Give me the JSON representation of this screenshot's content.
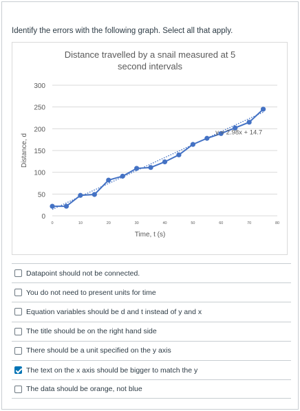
{
  "question": {
    "text": "Identify the errors with the following graph. Select all that apply."
  },
  "chart_data": {
    "type": "scatter",
    "title": "Distance travelled by a snail measured at 5 second intervals",
    "title_lines": [
      "Distance travelled by a snail measured at 5",
      "second intervals"
    ],
    "xlabel": "Time, t (s)",
    "ylabel": "Distance, d",
    "xlim": [
      0,
      80
    ],
    "ylim": [
      0,
      300
    ],
    "x_ticks": [
      0,
      10,
      20,
      30,
      40,
      50,
      60,
      70,
      80
    ],
    "y_ticks": [
      0,
      50,
      100,
      150,
      200,
      250,
      300
    ],
    "grid": true,
    "series": [
      {
        "x": [
          0,
          5,
          10,
          15,
          20,
          25,
          30,
          35,
          40,
          45,
          50,
          55,
          60,
          65,
          70,
          75
        ],
        "values": [
          22,
          22,
          47,
          49,
          82,
          91,
          109,
          111,
          124,
          140,
          164,
          178,
          189,
          202,
          215,
          245
        ],
        "color": "#4472c4"
      }
    ],
    "trendline": {
      "slope": 2.98,
      "intercept": 14.7,
      "label": "y = 2.98x + 14.7",
      "color": "#4472c4"
    }
  },
  "answers": [
    {
      "label": "Datapoint should not be connected.",
      "checked": false
    },
    {
      "label": "You do not need to present units for time",
      "checked": false
    },
    {
      "label": "Equation variables should be d and t instead of y and x",
      "checked": false
    },
    {
      "label": "The title should be on the right hand side",
      "checked": false
    },
    {
      "label": "There should be a unit specified on the y axis",
      "checked": false
    },
    {
      "label": "The text on the x axis should be bigger to match the y",
      "checked": true
    },
    {
      "label": "The data should be orange, not blue",
      "checked": false
    }
  ],
  "colors": {
    "accent": "#0374b5",
    "grid": "#d9d9d9",
    "axis_text": "#595959"
  }
}
